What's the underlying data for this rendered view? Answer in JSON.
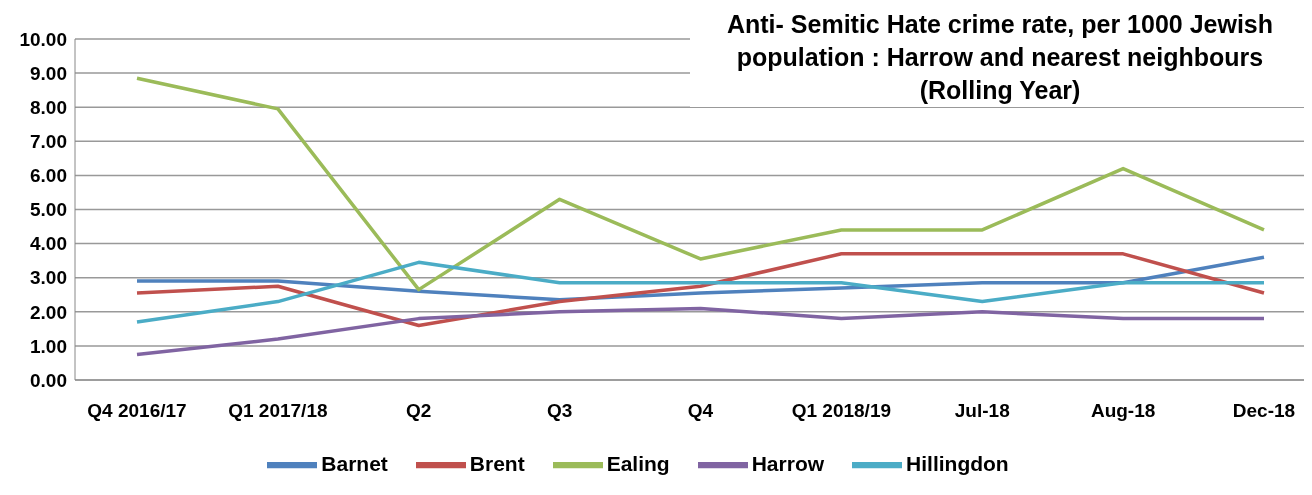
{
  "chart_data": {
    "type": "line",
    "title": "Anti- Semitic  Hate crime rate, per 1000 Jewish population : Harrow and nearest neighbours (Rolling Year)",
    "categories": [
      "Q4 2016/17",
      "Q1 2017/18",
      "Q2",
      "Q3",
      "Q4",
      "Q1 2018/19",
      "Jul-18",
      "Aug-18",
      "Dec-18"
    ],
    "series": [
      {
        "name": "Barnet",
        "color": "#4f81bd",
        "values": [
          2.9,
          2.9,
          2.6,
          2.35,
          2.55,
          2.7,
          2.85,
          2.85,
          3.6
        ]
      },
      {
        "name": "Brent",
        "color": "#c0504d",
        "values": [
          2.55,
          2.75,
          1.6,
          2.3,
          2.75,
          3.7,
          3.7,
          3.7,
          2.55
        ]
      },
      {
        "name": "Ealing",
        "color": "#9bbb59",
        "values": [
          8.85,
          7.95,
          2.65,
          5.3,
          3.55,
          4.4,
          4.4,
          6.2,
          4.4
        ]
      },
      {
        "name": "Harrow",
        "color": "#8064a2",
        "values": [
          0.75,
          1.2,
          1.8,
          2.0,
          2.1,
          1.8,
          2.0,
          1.8,
          1.8
        ]
      },
      {
        "name": "Hillingdon",
        "color": "#4bacc6",
        "values": [
          1.7,
          2.3,
          3.45,
          2.85,
          2.85,
          2.85,
          2.3,
          2.85,
          2.85
        ]
      }
    ],
    "ylim": [
      0,
      10
    ],
    "yticks": [
      {
        "value": 0,
        "label": "0.00"
      },
      {
        "value": 1,
        "label": "1.00"
      },
      {
        "value": 2,
        "label": "2.00"
      },
      {
        "value": 3,
        "label": "3.00"
      },
      {
        "value": 4,
        "label": "4.00"
      },
      {
        "value": 5,
        "label": "5.00"
      },
      {
        "value": 6,
        "label": "6.00"
      },
      {
        "value": 7,
        "label": "7.00"
      },
      {
        "value": 8,
        "label": "8.00"
      },
      {
        "value": 9,
        "label": "9.00"
      },
      {
        "value": 10,
        "label": "10.00"
      }
    ],
    "grid": "y",
    "legend": "bottom",
    "marker": "none",
    "line_style": "solid"
  }
}
